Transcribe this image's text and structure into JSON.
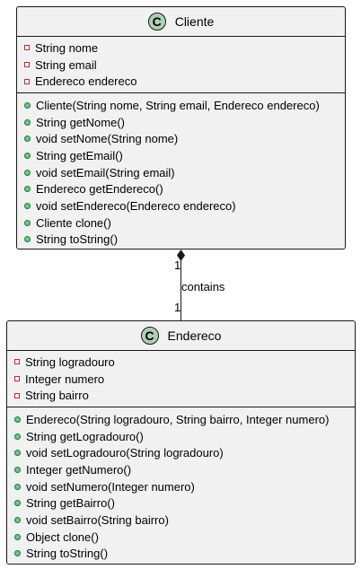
{
  "classes": {
    "cliente": {
      "badge": "C",
      "name": "Cliente",
      "attributes": [
        "String nome",
        "String email",
        "Endereco endereco"
      ],
      "operations": [
        "Cliente(String nome, String email, Endereco endereco)",
        "String getNome()",
        "void setNome(String nome)",
        "String getEmail()",
        "void setEmail(String email)",
        "Endereco getEndereco()",
        "void setEndereco(Endereco endereco)",
        "Cliente clone()",
        "String toString()"
      ]
    },
    "endereco": {
      "badge": "C",
      "name": "Endereco",
      "attributes": [
        "String logradouro",
        "Integer numero",
        "String bairro"
      ],
      "operations": [
        "Endereco(String logradouro, String bairro, Integer numero)",
        "String getLogradouro()",
        "void setLogradouro(String logradouro)",
        "Integer getNumero()",
        "void setNumero(Integer numero)",
        "String getBairro()",
        "void setBairro(String bairro)",
        "Object clone()",
        "String toString()"
      ]
    }
  },
  "association": {
    "label": "contains",
    "multiplicity_source": "1",
    "multiplicity_target": "1",
    "kind": "composition"
  },
  "colors": {
    "class_fill": "#f1f1f1",
    "border": "#181818",
    "badge_fill": "#add1b2",
    "private_marker": "#c82930",
    "public_marker": "#84be84"
  }
}
